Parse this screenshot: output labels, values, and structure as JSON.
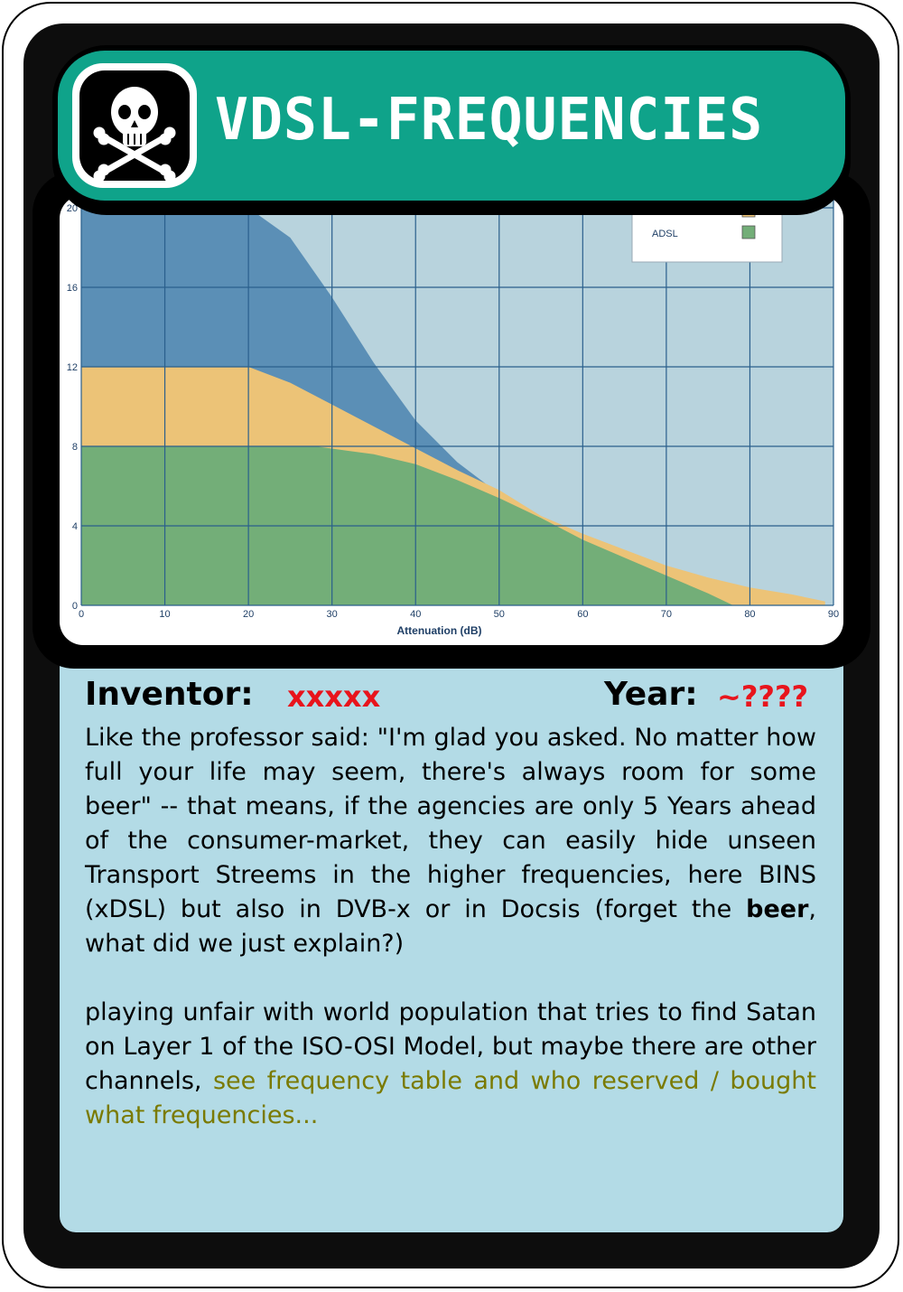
{
  "card": {
    "title": "VDSL-FREQUENCIES",
    "icon": "skull-crossbones-icon",
    "colors": {
      "header": "#0fa38a",
      "panel": "#b3dbe6",
      "frame": "#0d0d0d",
      "accent_red": "#e8141c",
      "link": "#7a7a00"
    }
  },
  "chart_data": {
    "type": "area",
    "xlabel": "Attenuation (dB)",
    "x_ticks": [
      "0",
      "10",
      "20",
      "30",
      "40",
      "50",
      "60",
      "70",
      "80",
      "90"
    ],
    "y_ticks": [
      "0",
      "4",
      "8",
      "12",
      "16",
      "20"
    ],
    "xlim": [
      0,
      90
    ],
    "ylim": [
      0,
      20
    ],
    "grid": true,
    "legend_position": "top-right",
    "series": [
      {
        "name": "",
        "color": "#5b8fb6",
        "x": [
          0,
          20,
          25,
          30,
          35,
          40,
          45,
          50,
          52
        ],
        "y": [
          20,
          20,
          18.5,
          15.5,
          12.2,
          9.3,
          7.2,
          5.6,
          5.0
        ]
      },
      {
        "name": "",
        "color": "#ecc377",
        "x": [
          0,
          20,
          25,
          30,
          35,
          40,
          45,
          50,
          55,
          60,
          65,
          70,
          75,
          80,
          85,
          89
        ],
        "y": [
          12,
          12,
          11.2,
          10.1,
          9.0,
          7.9,
          6.8,
          5.8,
          4.5,
          3.6,
          2.8,
          2.0,
          1.4,
          0.9,
          0.55,
          0.2
        ]
      },
      {
        "name": "ADSL",
        "color": "#73ae78",
        "x": [
          0,
          28,
          35,
          40,
          45,
          50,
          55,
          60,
          65,
          70,
          75,
          78
        ],
        "y": [
          8,
          8,
          7.6,
          7.1,
          6.3,
          5.4,
          4.4,
          3.3,
          2.4,
          1.5,
          0.6,
          0
        ]
      }
    ]
  },
  "info": {
    "inventor_label": "Inventor:",
    "inventor_value": "xxxxx",
    "year_label": "Year:",
    "year_value": "~????",
    "para1_a": "Like the professor said: \"I'm glad you asked. No matter how full your life may seem, there's always room for some beer\" -- that means, if the agencies are only 5 Years ahead of the consumer-market, they can easily hide unseen Transport Streems in the higher frequencies, here BINS (xDSL) but also in DVB-x or in Docsis (forget the ",
    "para1_bold": "beer",
    "para1_b": ", what did we just explain?)",
    "para2": "playing unfair with world population that tries to find Satan on Layer 1 of the ISO-OSI Model, but maybe there are other channels, ",
    "para2_link": "see frequency table and who reserved / bought what frequencies..."
  }
}
